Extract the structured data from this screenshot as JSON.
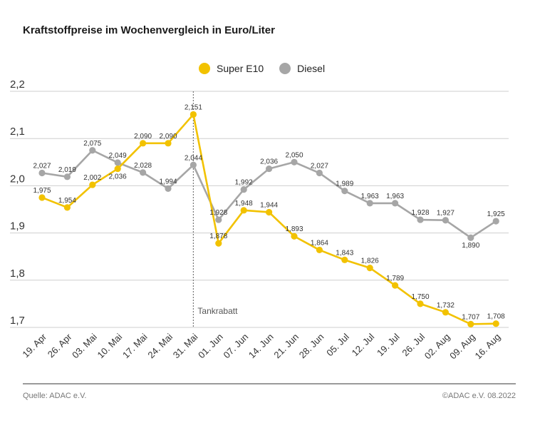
{
  "chart_data": {
    "type": "line",
    "title": "Kraftstoffpreise im Wochenvergleich in Euro/Liter",
    "categories": [
      "19. Apr",
      "26. Apr",
      "03. Mai",
      "10. Mai",
      "17. Mai",
      "24. Mai",
      "31. Mai",
      "01. Jun",
      "07. Jun",
      "14. Jun",
      "21. Jun",
      "28. Jun",
      "05. Jul",
      "12. Jul",
      "19. Jul",
      "26. Jul",
      "02. Aug",
      "09. Aug",
      "16. Aug"
    ],
    "series": [
      {
        "name": "Super E10",
        "color": "#f2c200",
        "values": [
          1.975,
          1.954,
          2.002,
          2.036,
          2.09,
          2.09,
          2.151,
          1.878,
          1.948,
          1.944,
          1.893,
          1.864,
          1.843,
          1.826,
          1.789,
          1.75,
          1.732,
          1.707,
          1.708
        ],
        "labels": [
          "1,975",
          "1,954",
          "2,002",
          "2,036",
          "2,090",
          "2,090",
          "2,151",
          "1,878",
          "1,948",
          "1,944",
          "1,893",
          "1,864",
          "1,843",
          "1,826",
          "1,789",
          "1,750",
          "1,732",
          "1,707",
          "1,708"
        ]
      },
      {
        "name": "Diesel",
        "color": "#a6a6a6",
        "values": [
          2.027,
          2.019,
          2.075,
          2.049,
          2.028,
          1.994,
          2.044,
          1.928,
          1.992,
          2.036,
          2.05,
          2.027,
          1.989,
          1.963,
          1.963,
          1.928,
          1.927,
          1.89,
          1.925
        ],
        "labels": [
          "2,027",
          "2,019",
          "2,075",
          "2,049",
          "2,028",
          "1,994",
          "2,044",
          "1,928",
          "1,992",
          "2,036",
          "2,050",
          "2,027",
          "1,989",
          "1,963",
          "1,963",
          "1,928",
          "1,927",
          "1,890",
          "1,925"
        ]
      }
    ],
    "ylim": [
      1.7,
      2.2
    ],
    "yticks": [
      1.7,
      1.8,
      1.9,
      2.0,
      2.1,
      2.2
    ],
    "ytick_labels": [
      "1,7",
      "1,8",
      "1,9",
      "2,0",
      "2,1",
      "2,2"
    ],
    "grid": true,
    "legend": "top-center",
    "annotation": {
      "text": "Tankrabatt",
      "at_category": "31. Mai"
    }
  },
  "footer": {
    "source": "Quelle: ADAC e.V.",
    "copyright": "©ADAC e.V.  08.2022"
  }
}
